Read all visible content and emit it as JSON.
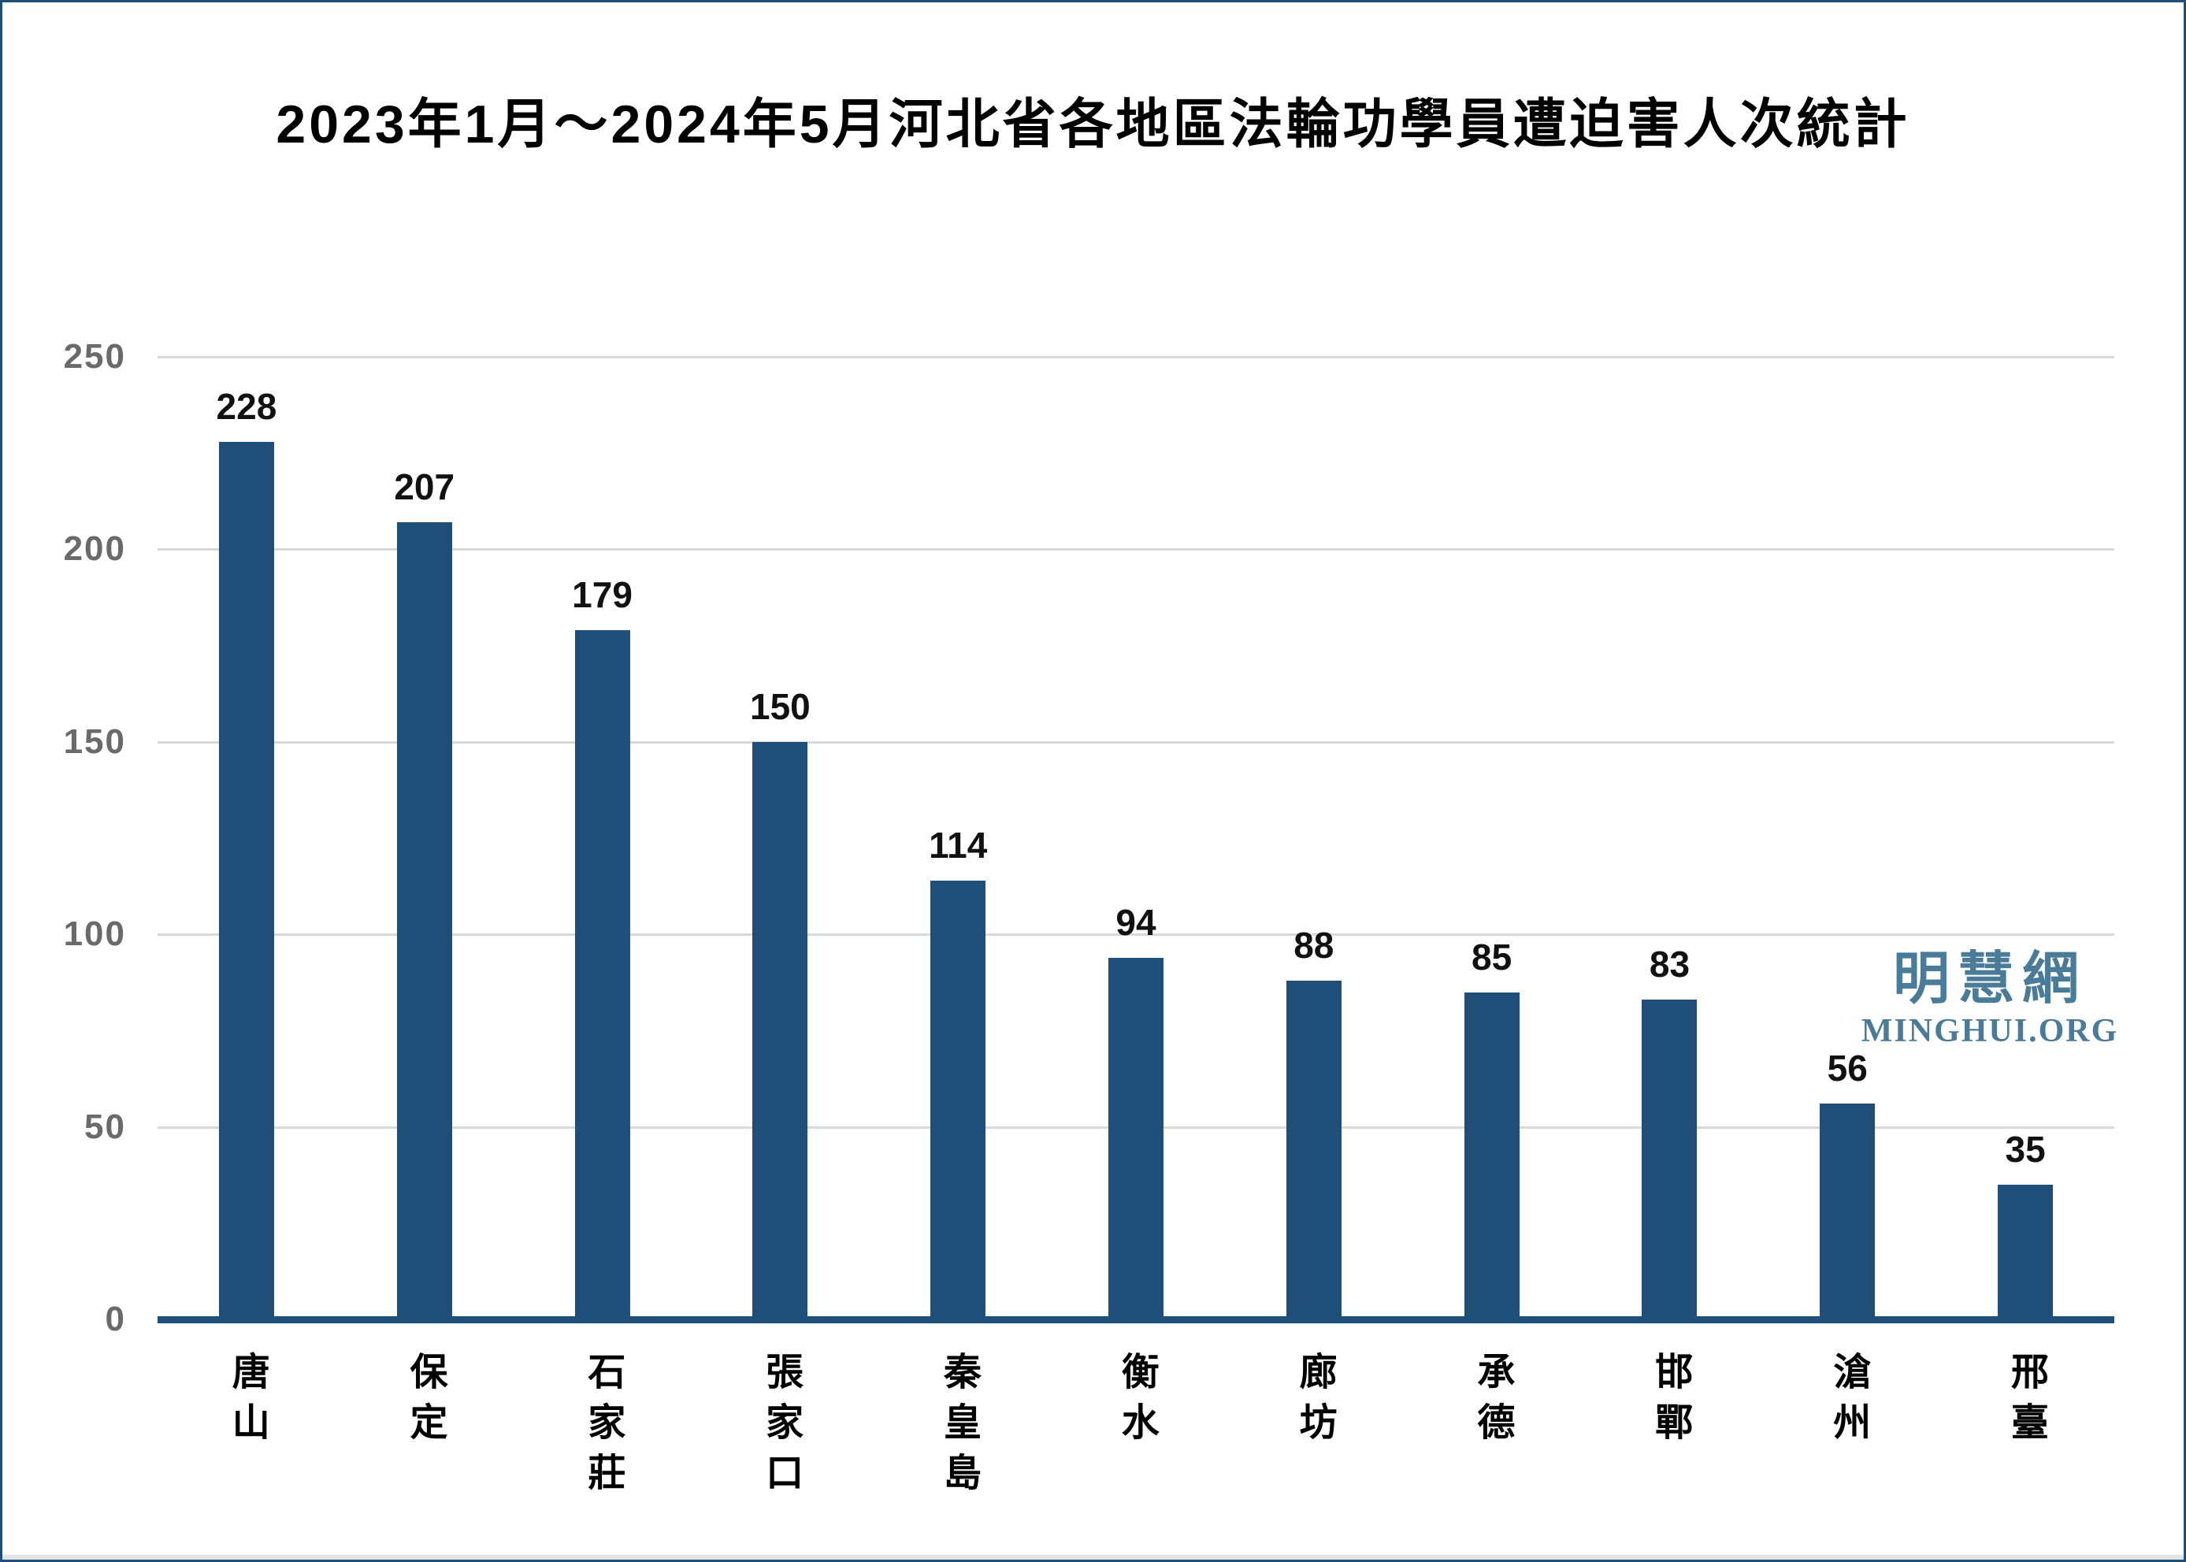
{
  "chart_data": {
    "type": "bar",
    "title": "2023年1月～2024年5月河北省各地區法輪功學員遭迫害人次統計",
    "categories": [
      "唐山",
      "保定",
      "石家莊",
      "張家口",
      "秦皇島",
      "衡水",
      "廊坊",
      "承德",
      "邯鄲",
      "滄州",
      "邢臺"
    ],
    "values": [
      228,
      207,
      179,
      150,
      114,
      94,
      88,
      85,
      83,
      56,
      35
    ],
    "xlabel": "",
    "ylabel": "",
    "ylim": [
      0,
      250
    ],
    "yticks": [
      0,
      50,
      100,
      150,
      200,
      250
    ],
    "grid": true,
    "legend_position": "none",
    "data_labels": true,
    "bar_color": "#1F4E79"
  },
  "watermark": {
    "chinese": "明慧網",
    "url": "MINGHUI.ORG",
    "color": "#4A7C99"
  },
  "colors": {
    "bar": "#1F4E79",
    "axis": "#1F4E79",
    "gridline": "#D9D9D9",
    "tick_label": "#6A6A6A",
    "value_label": "#111111",
    "frame_border": "#1F4E79",
    "background": "#FFFFFF"
  }
}
